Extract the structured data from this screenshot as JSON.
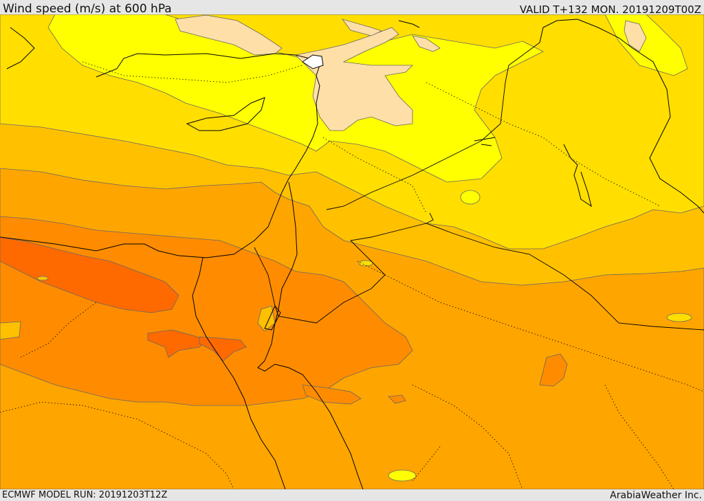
{
  "header": {
    "title": "Wind speed (m/s) at 600 hPa",
    "valid": "VALID T+132 MON. 20191209T00Z"
  },
  "footer": {
    "model_run": "ECMWF MODEL RUN: 20191203T12Z",
    "credit": "ArabiaWeather Inc."
  },
  "colors": {
    "band_light": "#ffdfa8",
    "band_yellow": "#ffff00",
    "band_gold": "#ffde00",
    "band_amber": "#ffc000",
    "band_orange": "#ffa500",
    "band_deep": "#ff8c00",
    "band_red": "#ff6a00",
    "contour": "#666666",
    "coast": "#000000"
  }
}
